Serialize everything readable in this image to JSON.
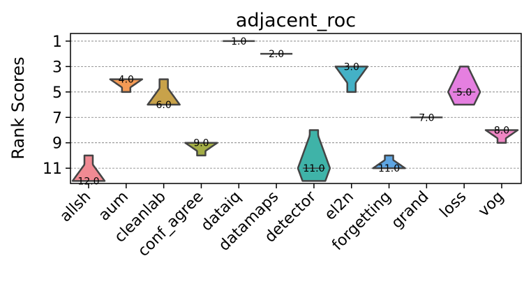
{
  "chart_data": {
    "type": "violin",
    "title": "adjacent_roc",
    "xlabel": "",
    "ylabel": "Rank Scores",
    "y_axis_inverted": true,
    "ylim": [
      12.2,
      0.4
    ],
    "yticks": [
      1,
      3,
      5,
      7,
      9,
      11
    ],
    "grid": "horizontal dashed",
    "categories": [
      "allsh",
      "aum",
      "cleanlab",
      "conf_agree",
      "dataiq",
      "datamaps",
      "detector",
      "el2n",
      "forgetting",
      "grand",
      "loss",
      "vog"
    ],
    "median_labels": [
      "12.0",
      "4.0",
      "6.0",
      "9.0",
      "1.0",
      "2.0",
      "11.0",
      "3.0",
      "11.0",
      "7.0",
      "5.0",
      "8.0"
    ],
    "violins": [
      {
        "category": "allsh",
        "median": 12.0,
        "min": 10,
        "max": 12,
        "color": "#f08a93"
      },
      {
        "category": "aum",
        "median": 4.0,
        "min": 4,
        "max": 5,
        "color": "#f39a55"
      },
      {
        "category": "cleanlab",
        "median": 6.0,
        "min": 4,
        "max": 6,
        "color": "#c8a24a"
      },
      {
        "category": "conf_agree",
        "median": 9.0,
        "min": 9,
        "max": 10,
        "color": "#a3ad46"
      },
      {
        "category": "dataiq",
        "median": 1.0,
        "min": 1,
        "max": 1,
        "color": "#6fb746"
      },
      {
        "category": "datamaps",
        "median": 2.0,
        "min": 2,
        "max": 2,
        "color": "#45b884"
      },
      {
        "category": "detector",
        "median": 11.0,
        "min": 8,
        "max": 12,
        "color": "#3fb3a8"
      },
      {
        "category": "el2n",
        "median": 3.0,
        "min": 3,
        "max": 5,
        "color": "#44b1c6"
      },
      {
        "category": "forgetting",
        "median": 11.0,
        "min": 10,
        "max": 11,
        "color": "#5ea5e2"
      },
      {
        "category": "grand",
        "median": 7.0,
        "min": 7,
        "max": 7,
        "color": "#ae8fe6"
      },
      {
        "category": "loss",
        "median": 5.0,
        "min": 3,
        "max": 6,
        "color": "#e57fe0"
      },
      {
        "category": "vog",
        "median": 8.0,
        "min": 8,
        "max": 9,
        "color": "#ef87c4"
      }
    ]
  }
}
